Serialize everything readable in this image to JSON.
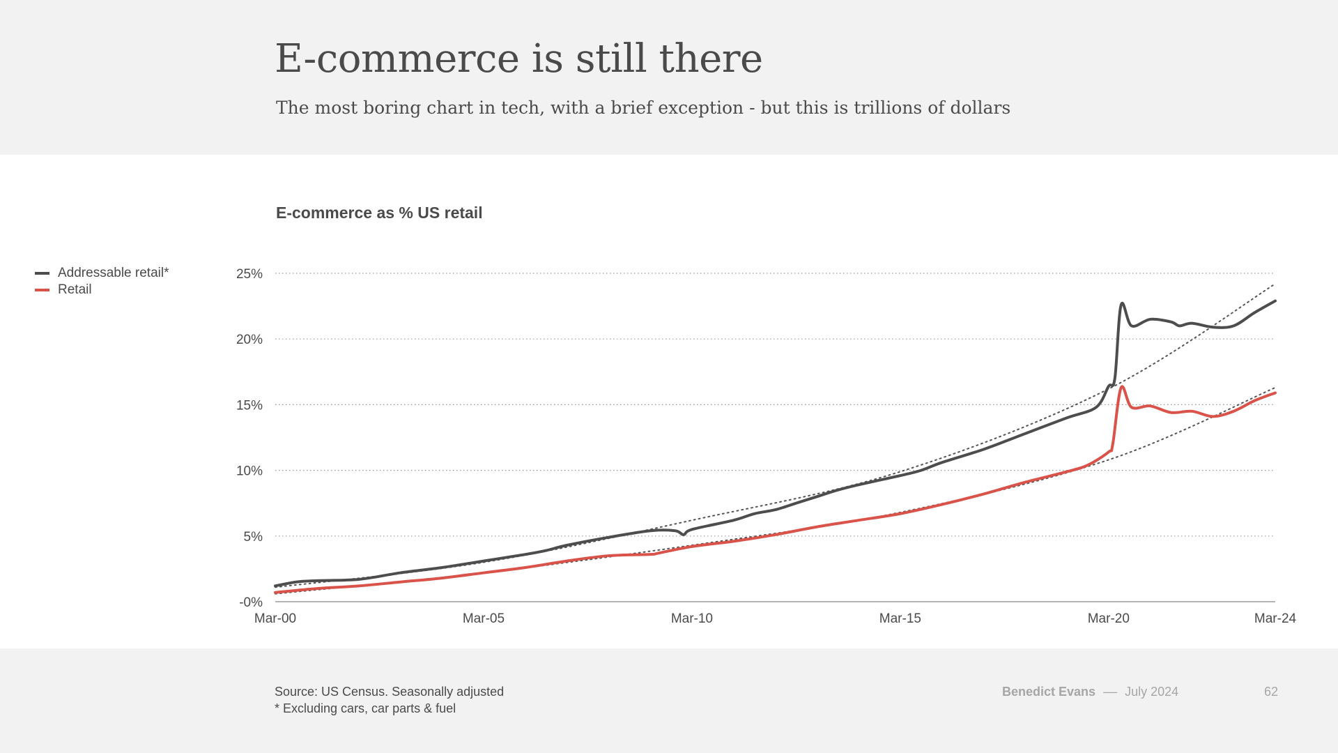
{
  "header": {
    "title": "E-commerce is still there",
    "subtitle": "The most boring chart in tech, with a brief exception - but this is trillions of dollars"
  },
  "colors": {
    "addressable": "#4d4d4d",
    "retail": "#d9534a",
    "trend": "#555555",
    "grid": "#9a9a9a"
  },
  "chart_data": {
    "type": "line",
    "title": "E-commerce as % US retail",
    "xlabel": "",
    "ylabel": "",
    "xlim": [
      2000,
      2024
    ],
    "ylim": [
      0,
      25
    ],
    "x_ticks": [
      {
        "v": 2000,
        "label": "Mar-00"
      },
      {
        "v": 2005,
        "label": "Mar-05"
      },
      {
        "v": 2010,
        "label": "Mar-10"
      },
      {
        "v": 2015,
        "label": "Mar-15"
      },
      {
        "v": 2020,
        "label": "Mar-20"
      },
      {
        "v": 2024,
        "label": "Mar-24"
      }
    ],
    "y_ticks": [
      {
        "v": 0,
        "label": "-0%"
      },
      {
        "v": 5,
        "label": "5%"
      },
      {
        "v": 10,
        "label": "10%"
      },
      {
        "v": 15,
        "label": "15%"
      },
      {
        "v": 20,
        "label": "20%"
      },
      {
        "v": 25,
        "label": "25%"
      }
    ],
    "grid": "horizontal dotted",
    "legend_position": "left",
    "series": [
      {
        "name": "Addressable retail*",
        "color_key": "addressable",
        "x": [
          2000,
          2000.5,
          2001,
          2002,
          2003,
          2004,
          2005,
          2006,
          2006.5,
          2007,
          2008,
          2009,
          2009.6,
          2009.8,
          2010,
          2011,
          2011.5,
          2012,
          2012.5,
          2013,
          2013.5,
          2014,
          2015,
          2015.5,
          2016,
          2017,
          2018,
          2019,
          2019.7,
          2020.0,
          2020.15,
          2020.3,
          2020.55,
          2021,
          2021.5,
          2021.7,
          2022,
          2022.5,
          2023,
          2023.5,
          2024
        ],
        "y": [
          1.2,
          1.5,
          1.6,
          1.7,
          2.2,
          2.6,
          3.1,
          3.6,
          3.9,
          4.3,
          4.9,
          5.4,
          5.4,
          5.1,
          5.5,
          6.2,
          6.7,
          7.0,
          7.5,
          8.0,
          8.5,
          8.9,
          9.6,
          10.0,
          10.6,
          11.6,
          12.8,
          14.0,
          14.8,
          16.4,
          17.0,
          22.6,
          21.0,
          21.5,
          21.3,
          21.0,
          21.2,
          20.9,
          21.0,
          22.0,
          22.9
        ]
      },
      {
        "name": "Retail",
        "color_key": "retail",
        "x": [
          2000,
          2001,
          2002,
          2003,
          2004,
          2005,
          2006,
          2007,
          2008,
          2009,
          2009.2,
          2010,
          2011,
          2012,
          2013,
          2014,
          2015,
          2016,
          2017,
          2018,
          2019,
          2019.5,
          2020.0,
          2020.1,
          2020.3,
          2020.55,
          2021,
          2021.5,
          2022,
          2022.5,
          2023,
          2023.5,
          2024
        ],
        "y": [
          0.7,
          1.0,
          1.2,
          1.5,
          1.8,
          2.2,
          2.6,
          3.1,
          3.5,
          3.6,
          3.7,
          4.2,
          4.6,
          5.1,
          5.7,
          6.2,
          6.7,
          7.4,
          8.2,
          9.1,
          9.9,
          10.4,
          11.4,
          12.0,
          16.3,
          14.8,
          14.9,
          14.4,
          14.5,
          14.1,
          14.5,
          15.3,
          15.9
        ]
      }
    ],
    "trendlines": [
      {
        "series": "Addressable retail*",
        "x": [
          2000,
          2005,
          2010,
          2015,
          2020,
          2024
        ],
        "y": [
          1.1,
          3.0,
          6.2,
          9.9,
          16.2,
          24.2
        ]
      },
      {
        "series": "Retail",
        "x": [
          2000,
          2005,
          2010,
          2015,
          2020,
          2024
        ],
        "y": [
          0.6,
          2.2,
          4.3,
          6.8,
          10.8,
          16.3
        ]
      }
    ]
  },
  "footer": {
    "source": "Source: US Census. Seasonally adjusted",
    "note": "* Excluding cars, car parts & fuel",
    "author": "Benedict Evans",
    "separator": "––",
    "date": "July 2024",
    "page": "62"
  }
}
